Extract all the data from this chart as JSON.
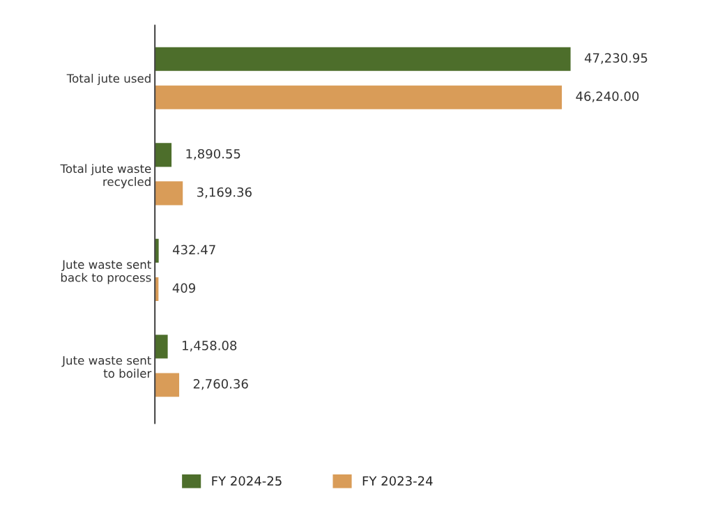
{
  "chart_data": {
    "type": "bar",
    "orientation": "horizontal",
    "categories": [
      "Total jute used",
      "Total jute waste\nrecycled",
      "Jute waste sent\nback to process",
      "Jute waste sent\nto boiler"
    ],
    "series": [
      {
        "name": "FY 2024-25",
        "color": "#4d6e2b",
        "values": [
          47230.95,
          1890.55,
          432.47,
          1458.08
        ],
        "value_labels": [
          "47,230.95",
          "1,890.55",
          "432.47",
          "1,458.08"
        ]
      },
      {
        "name": "FY 2023-24",
        "color": "#d99c58",
        "values": [
          46240.0,
          3169.36,
          409,
          2760.36
        ],
        "value_labels": [
          "46,240.00",
          "3,169.36",
          "409",
          "2,760.36"
        ]
      }
    ],
    "tick_labels": "y",
    "legend": "bottom",
    "grid": false
  }
}
